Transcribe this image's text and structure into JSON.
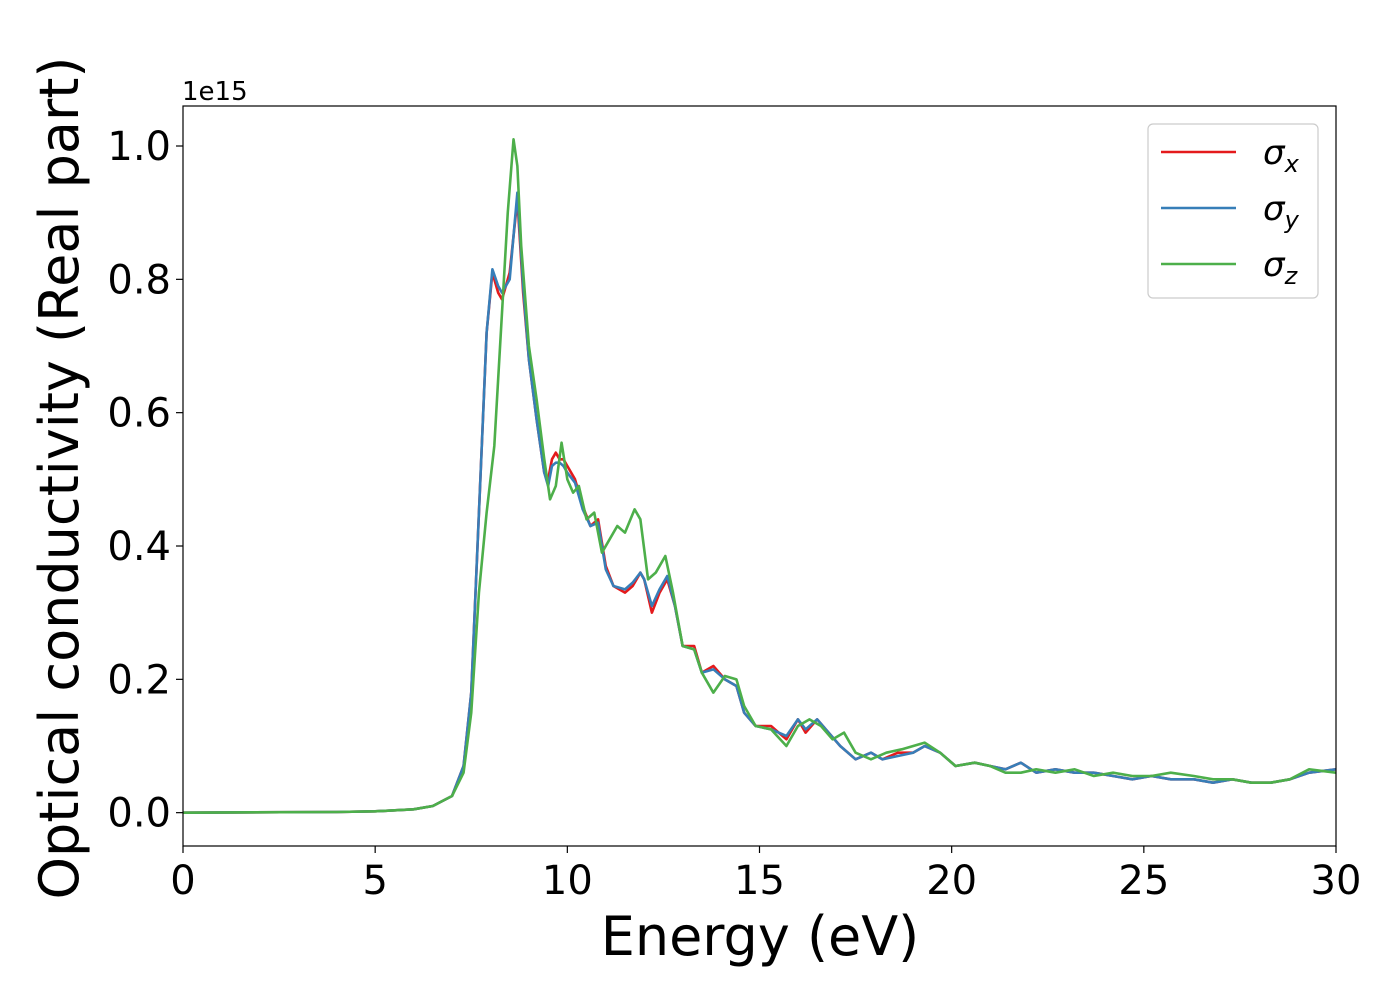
{
  "chart_data": {
    "type": "line",
    "title": "",
    "xlabel": "Energy (eV)",
    "ylabel": "Optical conductivity (Real part)",
    "y_offset_label": "1e15",
    "xlim": [
      0,
      30
    ],
    "ylim": [
      -0.05,
      1.06
    ],
    "x_ticks": [
      0,
      5,
      10,
      15,
      20,
      25,
      30
    ],
    "x_tick_labels": [
      "0",
      "5",
      "10",
      "15",
      "20",
      "25",
      "30"
    ],
    "y_ticks": [
      0.0,
      0.2,
      0.4,
      0.6,
      0.8,
      1.0
    ],
    "y_tick_labels": [
      "0.0",
      "0.2",
      "0.4",
      "0.6",
      "0.8",
      "1.0"
    ],
    "grid": false,
    "legend_position": "top-right",
    "series": [
      {
        "name": "σx",
        "symbol": "σ",
        "subscript": "x",
        "color": "#e41a1c",
        "points": [
          [
            0,
            0
          ],
          [
            4,
            0.001
          ],
          [
            5,
            0.002
          ],
          [
            6,
            0.005
          ],
          [
            6.5,
            0.01
          ],
          [
            7,
            0.025
          ],
          [
            7.3,
            0.07
          ],
          [
            7.5,
            0.18
          ],
          [
            7.7,
            0.45
          ],
          [
            7.9,
            0.72
          ],
          [
            8.05,
            0.81
          ],
          [
            8.2,
            0.78
          ],
          [
            8.3,
            0.77
          ],
          [
            8.5,
            0.81
          ],
          [
            8.7,
            0.92
          ],
          [
            8.85,
            0.78
          ],
          [
            9.0,
            0.68
          ],
          [
            9.2,
            0.59
          ],
          [
            9.4,
            0.51
          ],
          [
            9.5,
            0.5
          ],
          [
            9.6,
            0.53
          ],
          [
            9.7,
            0.54
          ],
          [
            9.8,
            0.53
          ],
          [
            9.9,
            0.53
          ],
          [
            10.0,
            0.52
          ],
          [
            10.2,
            0.5
          ],
          [
            10.4,
            0.46
          ],
          [
            10.6,
            0.43
          ],
          [
            10.8,
            0.44
          ],
          [
            11.0,
            0.37
          ],
          [
            11.2,
            0.34
          ],
          [
            11.5,
            0.33
          ],
          [
            11.7,
            0.34
          ],
          [
            11.9,
            0.36
          ],
          [
            12.0,
            0.35
          ],
          [
            12.2,
            0.3
          ],
          [
            12.4,
            0.33
          ],
          [
            12.6,
            0.35
          ],
          [
            12.8,
            0.31
          ],
          [
            13.0,
            0.25
          ],
          [
            13.3,
            0.25
          ],
          [
            13.5,
            0.21
          ],
          [
            13.8,
            0.22
          ],
          [
            14.1,
            0.2
          ],
          [
            14.4,
            0.19
          ],
          [
            14.6,
            0.15
          ],
          [
            14.9,
            0.13
          ],
          [
            15.3,
            0.13
          ],
          [
            15.7,
            0.11
          ],
          [
            16.0,
            0.14
          ],
          [
            16.2,
            0.12
          ],
          [
            16.5,
            0.14
          ],
          [
            16.8,
            0.12
          ],
          [
            17.1,
            0.1
          ],
          [
            17.5,
            0.08
          ],
          [
            17.9,
            0.09
          ],
          [
            18.2,
            0.08
          ],
          [
            18.6,
            0.09
          ],
          [
            19.0,
            0.09
          ],
          [
            19.3,
            0.1
          ],
          [
            19.7,
            0.09
          ],
          [
            20.1,
            0.07
          ],
          [
            20.6,
            0.075
          ],
          [
            21.0,
            0.07
          ],
          [
            21.4,
            0.065
          ],
          [
            21.8,
            0.075
          ],
          [
            22.2,
            0.06
          ],
          [
            22.7,
            0.065
          ],
          [
            23.2,
            0.06
          ],
          [
            23.7,
            0.06
          ],
          [
            24.2,
            0.055
          ],
          [
            24.7,
            0.05
          ],
          [
            25.2,
            0.055
          ],
          [
            25.7,
            0.05
          ],
          [
            26.3,
            0.05
          ],
          [
            26.8,
            0.045
          ],
          [
            27.3,
            0.05
          ],
          [
            27.8,
            0.045
          ],
          [
            28.3,
            0.045
          ],
          [
            28.8,
            0.05
          ],
          [
            29.3,
            0.06
          ],
          [
            30.0,
            0.065
          ]
        ]
      },
      {
        "name": "σy",
        "symbol": "σ",
        "subscript": "y",
        "color": "#377eb8",
        "points": [
          [
            0,
            0
          ],
          [
            4,
            0.001
          ],
          [
            5,
            0.002
          ],
          [
            6,
            0.005
          ],
          [
            6.5,
            0.01
          ],
          [
            7,
            0.025
          ],
          [
            7.3,
            0.07
          ],
          [
            7.5,
            0.18
          ],
          [
            7.7,
            0.45
          ],
          [
            7.9,
            0.72
          ],
          [
            8.05,
            0.815
          ],
          [
            8.2,
            0.79
          ],
          [
            8.3,
            0.78
          ],
          [
            8.5,
            0.8
          ],
          [
            8.7,
            0.93
          ],
          [
            8.85,
            0.79
          ],
          [
            9.0,
            0.68
          ],
          [
            9.2,
            0.59
          ],
          [
            9.4,
            0.51
          ],
          [
            9.5,
            0.49
          ],
          [
            9.6,
            0.52
          ],
          [
            9.7,
            0.525
          ],
          [
            9.8,
            0.525
          ],
          [
            9.9,
            0.52
          ],
          [
            10.0,
            0.51
          ],
          [
            10.2,
            0.495
          ],
          [
            10.4,
            0.455
          ],
          [
            10.6,
            0.43
          ],
          [
            10.8,
            0.435
          ],
          [
            11.0,
            0.365
          ],
          [
            11.2,
            0.34
          ],
          [
            11.5,
            0.335
          ],
          [
            11.7,
            0.345
          ],
          [
            11.9,
            0.36
          ],
          [
            12.0,
            0.35
          ],
          [
            12.2,
            0.31
          ],
          [
            12.4,
            0.335
          ],
          [
            12.6,
            0.355
          ],
          [
            12.8,
            0.31
          ],
          [
            13.0,
            0.25
          ],
          [
            13.3,
            0.245
          ],
          [
            13.5,
            0.21
          ],
          [
            13.8,
            0.215
          ],
          [
            14.1,
            0.2
          ],
          [
            14.4,
            0.19
          ],
          [
            14.6,
            0.15
          ],
          [
            14.9,
            0.13
          ],
          [
            15.3,
            0.125
          ],
          [
            15.7,
            0.115
          ],
          [
            16.0,
            0.14
          ],
          [
            16.2,
            0.125
          ],
          [
            16.5,
            0.14
          ],
          [
            16.8,
            0.12
          ],
          [
            17.1,
            0.1
          ],
          [
            17.5,
            0.08
          ],
          [
            17.9,
            0.09
          ],
          [
            18.2,
            0.08
          ],
          [
            18.6,
            0.085
          ],
          [
            19.0,
            0.09
          ],
          [
            19.3,
            0.1
          ],
          [
            19.7,
            0.09
          ],
          [
            20.1,
            0.07
          ],
          [
            20.6,
            0.075
          ],
          [
            21.0,
            0.07
          ],
          [
            21.4,
            0.065
          ],
          [
            21.8,
            0.075
          ],
          [
            22.2,
            0.06
          ],
          [
            22.7,
            0.065
          ],
          [
            23.2,
            0.06
          ],
          [
            23.7,
            0.06
          ],
          [
            24.2,
            0.055
          ],
          [
            24.7,
            0.05
          ],
          [
            25.2,
            0.055
          ],
          [
            25.7,
            0.05
          ],
          [
            26.3,
            0.05
          ],
          [
            26.8,
            0.045
          ],
          [
            27.3,
            0.05
          ],
          [
            27.8,
            0.045
          ],
          [
            28.3,
            0.045
          ],
          [
            28.8,
            0.05
          ],
          [
            29.3,
            0.06
          ],
          [
            30.0,
            0.065
          ]
        ]
      },
      {
        "name": "σz",
        "symbol": "σ",
        "subscript": "z",
        "color": "#4daf4a",
        "points": [
          [
            0,
            0
          ],
          [
            4,
            0.001
          ],
          [
            5,
            0.002
          ],
          [
            6,
            0.005
          ],
          [
            6.5,
            0.01
          ],
          [
            7,
            0.025
          ],
          [
            7.3,
            0.06
          ],
          [
            7.5,
            0.15
          ],
          [
            7.7,
            0.33
          ],
          [
            7.9,
            0.45
          ],
          [
            8.1,
            0.55
          ],
          [
            8.3,
            0.75
          ],
          [
            8.45,
            0.9
          ],
          [
            8.6,
            1.01
          ],
          [
            8.7,
            0.97
          ],
          [
            8.8,
            0.85
          ],
          [
            9.0,
            0.7
          ],
          [
            9.2,
            0.62
          ],
          [
            9.4,
            0.53
          ],
          [
            9.55,
            0.47
          ],
          [
            9.7,
            0.49
          ],
          [
            9.85,
            0.555
          ],
          [
            10.0,
            0.5
          ],
          [
            10.15,
            0.48
          ],
          [
            10.3,
            0.49
          ],
          [
            10.5,
            0.44
          ],
          [
            10.7,
            0.45
          ],
          [
            10.9,
            0.39
          ],
          [
            11.1,
            0.41
          ],
          [
            11.3,
            0.43
          ],
          [
            11.5,
            0.42
          ],
          [
            11.75,
            0.455
          ],
          [
            11.9,
            0.44
          ],
          [
            12.1,
            0.35
          ],
          [
            12.3,
            0.36
          ],
          [
            12.55,
            0.385
          ],
          [
            12.75,
            0.33
          ],
          [
            13.0,
            0.25
          ],
          [
            13.3,
            0.245
          ],
          [
            13.5,
            0.21
          ],
          [
            13.8,
            0.18
          ],
          [
            14.1,
            0.205
          ],
          [
            14.4,
            0.2
          ],
          [
            14.6,
            0.16
          ],
          [
            14.9,
            0.13
          ],
          [
            15.3,
            0.125
          ],
          [
            15.7,
            0.1
          ],
          [
            16.0,
            0.13
          ],
          [
            16.3,
            0.14
          ],
          [
            16.6,
            0.13
          ],
          [
            16.9,
            0.11
          ],
          [
            17.2,
            0.12
          ],
          [
            17.5,
            0.09
          ],
          [
            17.9,
            0.08
          ],
          [
            18.3,
            0.09
          ],
          [
            18.7,
            0.095
          ],
          [
            19.0,
            0.1
          ],
          [
            19.3,
            0.105
          ],
          [
            19.7,
            0.09
          ],
          [
            20.1,
            0.07
          ],
          [
            20.6,
            0.075
          ],
          [
            21.0,
            0.07
          ],
          [
            21.4,
            0.06
          ],
          [
            21.8,
            0.06
          ],
          [
            22.2,
            0.065
          ],
          [
            22.7,
            0.06
          ],
          [
            23.2,
            0.065
          ],
          [
            23.7,
            0.055
          ],
          [
            24.2,
            0.06
          ],
          [
            24.7,
            0.055
          ],
          [
            25.2,
            0.055
          ],
          [
            25.7,
            0.06
          ],
          [
            26.3,
            0.055
          ],
          [
            26.8,
            0.05
          ],
          [
            27.3,
            0.05
          ],
          [
            27.8,
            0.045
          ],
          [
            28.3,
            0.045
          ],
          [
            28.8,
            0.05
          ],
          [
            29.3,
            0.065
          ],
          [
            30.0,
            0.06
          ]
        ]
      }
    ]
  }
}
